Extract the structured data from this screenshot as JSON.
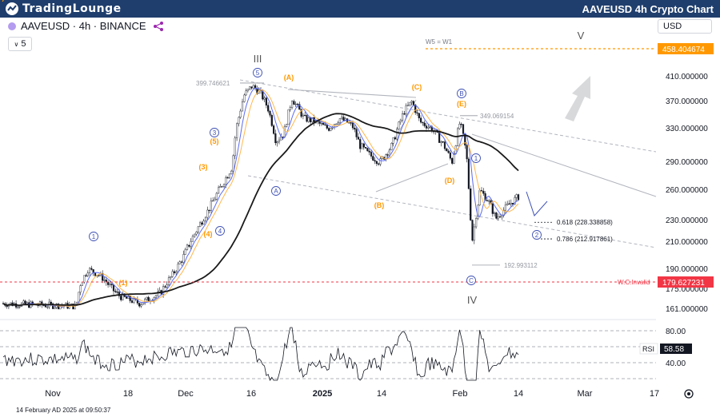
{
  "header": {
    "logo_text": "TradingLounge",
    "title": "AAVEUSD 4h Crypto Chart"
  },
  "symbol": {
    "label": "AAVEUSD · 4h · BINANCE",
    "interval_badge": "5"
  },
  "currency": "USD",
  "timestamp": "14 February AD 2025 at 09:50:37",
  "colors": {
    "header_bg": "#1f3e6d",
    "orange": "#ff9800",
    "red": "#f23645",
    "blue_labels": "#3f51b5",
    "ema_blue": "#5b6bf0",
    "ema_orange": "#ffb74d",
    "ma_black": "#1a1a1a"
  },
  "chart_data": {
    "type": "candlestick",
    "title": "AAVEUSD 4h Crypto Chart",
    "price_axis": {
      "ticks": [
        "410.000000",
        "370.000000",
        "330.000000",
        "290.000000",
        "260.000000",
        "230.000000",
        "210.000000",
        "190.000000",
        "175.000000",
        "161.000000"
      ],
      "highlighted": [
        {
          "value": "458.404674",
          "color": "#ff9800"
        },
        {
          "value": "179.627231",
          "color": "#f23645"
        }
      ]
    },
    "time_axis": [
      "Nov",
      "18",
      "Dec",
      "16",
      "2025",
      "14",
      "Feb",
      "14",
      "Mar",
      "17"
    ],
    "levels": [
      {
        "label": "W5 = W1",
        "value": 458.404674
      },
      {
        "label": "W.C.Invalid",
        "value": 179.627231
      },
      {
        "label": "399.746621",
        "value": 399.746621
      },
      {
        "label": "349.069154",
        "value": 349.069154
      },
      {
        "label": "192.993112",
        "value": 192.993112
      },
      {
        "label": "0.618 (228.338858)",
        "value": 228.338858
      },
      {
        "label": "0.786 (212.917861)",
        "value": 212.917861
      }
    ],
    "wave_labels": [
      "III",
      "IV",
      "V",
      "1",
      "2",
      "3",
      "4",
      "5",
      "(1)",
      "(2)",
      "(3)",
      "(4)",
      "(5)",
      "A",
      "B",
      "C",
      "(A)",
      "(B)",
      "(C)",
      "(D)",
      "(E)"
    ],
    "rsi": {
      "label": "RSI",
      "value": "58.58",
      "ticks": [
        "80.00",
        "40.00"
      ]
    }
  }
}
